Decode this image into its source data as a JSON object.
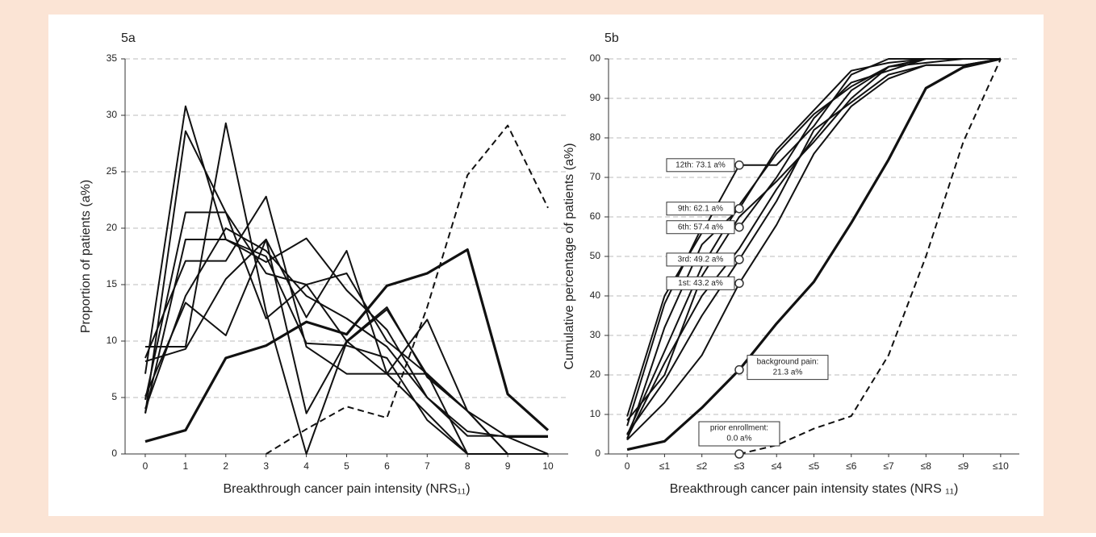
{
  "chart_data": [
    {
      "type": "line",
      "panel_label": "5a",
      "ylabel": "Proportion of patients (a%)",
      "xlabel": "Breakthrough cancer pain intensity (NRS₁₁)",
      "categories": [
        "0",
        "1",
        "2",
        "3",
        "4",
        "5",
        "6",
        "7",
        "8",
        "9",
        "10"
      ],
      "ylim": [
        0,
        35
      ],
      "yticks": [
        0,
        5,
        10,
        15,
        20,
        25,
        30,
        35
      ],
      "grid": true,
      "series": [
        {
          "color": "#111111",
          "style": "solid",
          "values": [
            7.1,
            30.8,
            19.0,
            17.5,
            9.8,
            9.6,
            8.5,
            3.0,
            0,
            0,
            0
          ]
        },
        {
          "color": "#111111",
          "style": "solid",
          "values": [
            3.6,
            28.6,
            21.4,
            12.0,
            15.0,
            10.0,
            7.1,
            3.6,
            0,
            0,
            0
          ]
        },
        {
          "color": "#111111",
          "style": "solid",
          "values": [
            9.5,
            9.5,
            29.3,
            12.6,
            0,
            9.9,
            12.8,
            7.0,
            3.8,
            1.5,
            1.5
          ]
        },
        {
          "color": "#111111",
          "style": "solid",
          "values": [
            4.8,
            21.4,
            21.4,
            16.0,
            15.0,
            16.0,
            10.0,
            7.1,
            3.8,
            0,
            0
          ]
        },
        {
          "color": "#111111",
          "style": "solid",
          "values": [
            8.5,
            17.1,
            17.1,
            22.8,
            9.5,
            7.1,
            7.1,
            7.1,
            0,
            0,
            0
          ]
        },
        {
          "color": "#111111",
          "style": "solid",
          "values": [
            5.1,
            13.4,
            10.5,
            19.0,
            12.1,
            18.0,
            7.1,
            11.9,
            3.8,
            0,
            0
          ]
        },
        {
          "color": "#111111",
          "style": "solid",
          "values": [
            3.6,
            19.0,
            19.0,
            17.0,
            19.1,
            14.5,
            11.0,
            5.0,
            1.6,
            1.6,
            1.6
          ]
        },
        {
          "color": "#111111",
          "style": "solid",
          "values": [
            8.2,
            9.3,
            15.5,
            19.0,
            3.6,
            10.0,
            13.0,
            6.8,
            3.8,
            0,
            0
          ]
        },
        {
          "color": "#111111",
          "style": "solid",
          "values": [
            4.0,
            14.0,
            20.0,
            18.0,
            14.0,
            12.0,
            9.5,
            5.0,
            2.0,
            1.5,
            0
          ]
        },
        {
          "color": "#111111",
          "style": "bold",
          "values": [
            1.1,
            2.1,
            8.5,
            9.6,
            11.7,
            10.6,
            14.9,
            16.0,
            18.1,
            5.3,
            2.1
          ]
        },
        {
          "color": "#111111",
          "style": "dashed",
          "values": [
            null,
            null,
            null,
            0,
            2.2,
            4.2,
            3.2,
            13.0,
            24.7,
            29.1,
            21.8
          ]
        }
      ]
    },
    {
      "type": "line",
      "panel_label": "5b",
      "ylabel": "Cumulative percentage of patients (a%)",
      "xlabel": "Breakthrough cancer pain intensity states (NRS ₁₁)",
      "categories": [
        "0",
        "≤1",
        "≤2",
        "≤3",
        "≤4",
        "≤5",
        "≤6",
        "≤7",
        "≤8",
        "≤9",
        "≤10"
      ],
      "ylim": [
        0,
        100
      ],
      "yticks": [
        0,
        10,
        20,
        30,
        40,
        50,
        60,
        70,
        80,
        90,
        {
          "value": 100,
          "label": "00"
        }
      ],
      "grid": true,
      "series": [
        {
          "color": "#111111",
          "style": "solid",
          "values": [
            9.5,
            40,
            56,
            73.1,
            73.1,
            83,
            96,
            100,
            100,
            100,
            100
          ]
        },
        {
          "color": "#111111",
          "style": "solid",
          "values": [
            3.6,
            32,
            53,
            62.1,
            77,
            87,
            97,
            99,
            100,
            100,
            100
          ]
        },
        {
          "color": "#111111",
          "style": "solid",
          "values": [
            7.1,
            38,
            57.4,
            57.4,
            70,
            85,
            94,
            97,
            100,
            100,
            100
          ]
        },
        {
          "color": "#111111",
          "style": "solid",
          "values": [
            4.8,
            26,
            47.4,
            63,
            76,
            86,
            93,
            98,
            100,
            100,
            100
          ]
        },
        {
          "color": "#111111",
          "style": "solid",
          "values": [
            5.1,
            18.5,
            35,
            49.2,
            64,
            82,
            89,
            96,
            98.4,
            98.4,
            100
          ]
        },
        {
          "color": "#111111",
          "style": "solid",
          "values": [
            3.6,
            13,
            25,
            43.2,
            58,
            76,
            88,
            95,
            98.4,
            98.4,
            100
          ]
        },
        {
          "color": "#111111",
          "style": "solid",
          "values": [
            8.5,
            20,
            45,
            60,
            69,
            79,
            90,
            98,
            100,
            100,
            100
          ]
        },
        {
          "color": "#111111",
          "style": "solid",
          "values": [
            4,
            23,
            40,
            52,
            67,
            80,
            92,
            98,
            99,
            100,
            100
          ]
        },
        {
          "color": "#111111",
          "style": "bold",
          "values": [
            1.1,
            3.2,
            11.7,
            21.3,
            33,
            43.6,
            58.5,
            74.5,
            92.6,
            97.9,
            100
          ]
        },
        {
          "color": "#111111",
          "style": "dashed",
          "values": [
            null,
            null,
            null,
            0,
            2.2,
            6.4,
            9.6,
            25,
            50,
            79,
            100
          ]
        }
      ],
      "annotations": [
        {
          "category": "≤3",
          "y": 73.1,
          "text": [
            "12th: 73.1 a%"
          ]
        },
        {
          "category": "≤3",
          "y": 62.1,
          "text": [
            "9th: 62.1 a%"
          ]
        },
        {
          "category": "≤3",
          "y": 57.4,
          "text": [
            "6th: 57.4 a%"
          ]
        },
        {
          "category": "≤3",
          "y": 49.2,
          "text": [
            "3rd: 49.2 a%"
          ]
        },
        {
          "category": "≤3",
          "y": 43.2,
          "text": [
            "1st: 43.2 a%"
          ]
        },
        {
          "category": "≤3",
          "y": 21.3,
          "text": [
            "background pain:",
            "21.3 a%"
          ]
        },
        {
          "category": "≤3",
          "y": 0.0,
          "text": [
            "prior enrollment:",
            "0.0 a%"
          ]
        }
      ]
    }
  ]
}
